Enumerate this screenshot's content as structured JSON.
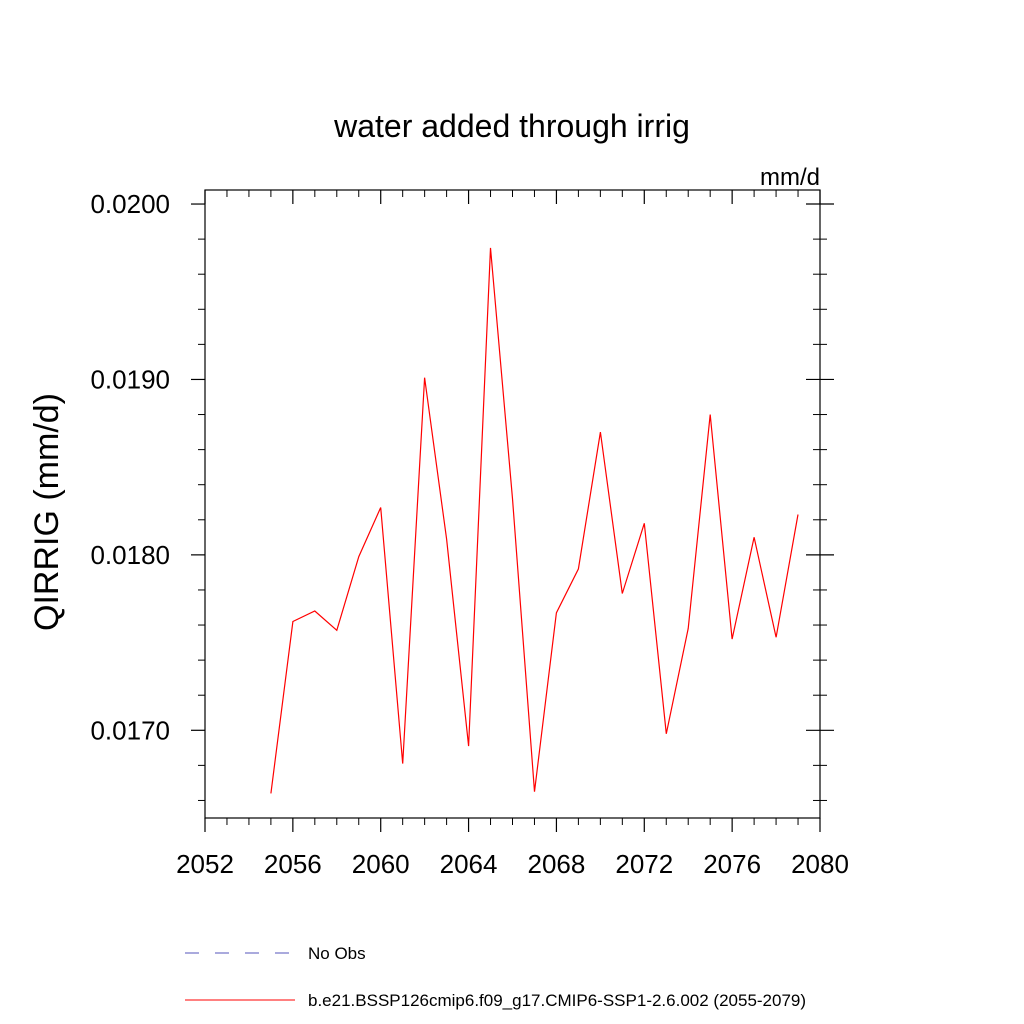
{
  "chart_data": {
    "type": "line",
    "title": "water added through irrig",
    "units": "mm/d",
    "ylabel": "QIRRIG  (mm/d)",
    "xlabel": "",
    "xlim": [
      2052,
      2080
    ],
    "ylim": [
      0.0165,
      0.02008
    ],
    "x_ticks": [
      2052,
      2056,
      2060,
      2064,
      2068,
      2072,
      2076,
      2080
    ],
    "x_tick_labels": [
      "2052",
      "2056",
      "2060",
      "2064",
      "2068",
      "2072",
      "2076",
      "2080"
    ],
    "y_ticks": [
      0.017,
      0.018,
      0.019,
      0.02
    ],
    "y_tick_labels": [
      "0.0170",
      "0.0180",
      "0.0190",
      "0.0200"
    ],
    "grid": false,
    "legend_position": "bottom",
    "legend": [
      {
        "label": "No Obs",
        "color": "#5555bb",
        "style": "dashed"
      },
      {
        "label": "b.e21.BSSP126cmip6.f09_g17.CMIP6-SSP1-2.6.002 (2055-2079)",
        "color": "#ff0000",
        "style": "solid"
      }
    ],
    "series": [
      {
        "name": "b.e21.BSSP126cmip6.f09_g17.CMIP6-SSP1-2.6.002 (2055-2079)",
        "color": "#ff0000",
        "x": [
          2055,
          2056,
          2057,
          2058,
          2059,
          2060,
          2061,
          2062,
          2063,
          2064,
          2065,
          2066,
          2067,
          2068,
          2069,
          2070,
          2071,
          2072,
          2073,
          2074,
          2075,
          2076,
          2077,
          2078,
          2079
        ],
        "y": [
          0.01664,
          0.01762,
          0.01768,
          0.01757,
          0.01799,
          0.01827,
          0.01681,
          0.01901,
          0.01809,
          0.01691,
          0.01975,
          0.01832,
          0.01665,
          0.01767,
          0.01792,
          0.0187,
          0.01778,
          0.01818,
          0.01698,
          0.01758,
          0.0188,
          0.01752,
          0.0181,
          0.01753,
          0.01823
        ]
      }
    ]
  }
}
